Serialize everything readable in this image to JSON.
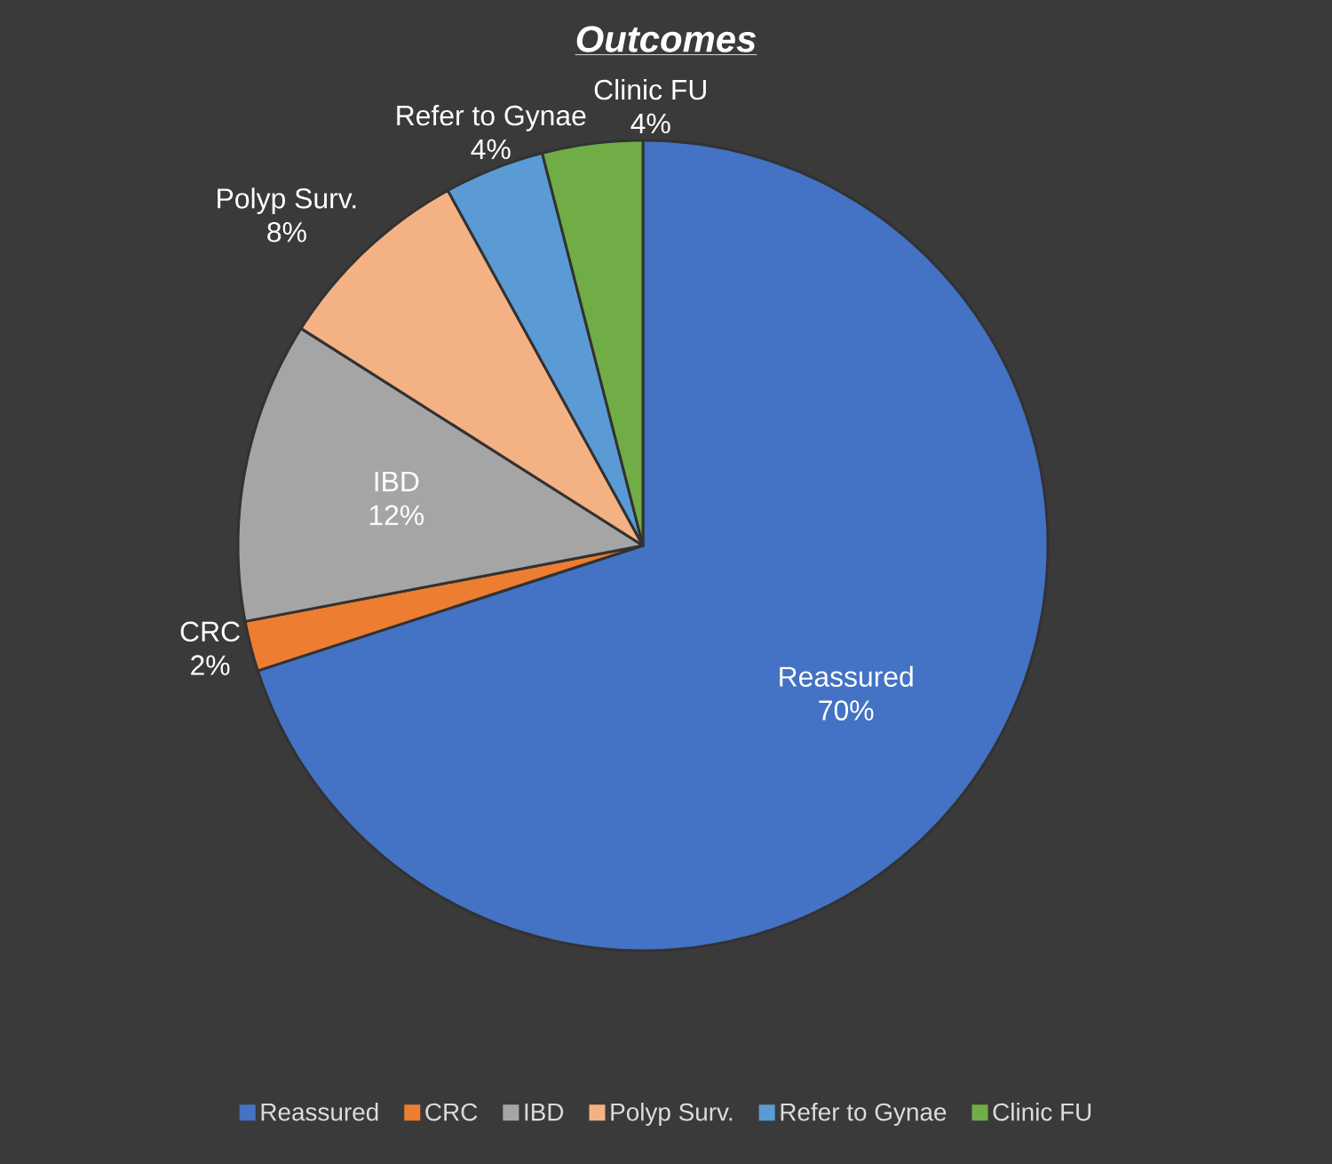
{
  "chart_data": {
    "type": "pie",
    "title": "Outcomes",
    "categories": [
      "Reassured",
      "CRC",
      "IBD",
      "Polyp Surv.",
      "Refer to Gynae",
      "Clinic FU"
    ],
    "values": [
      70,
      2,
      12,
      8,
      4,
      4
    ],
    "value_labels": [
      "70%",
      "2%",
      "12%",
      "8%",
      "4%",
      "4%"
    ],
    "colors": [
      "#4472c4",
      "#ed7d31",
      "#a5a5a5",
      "#f4b183",
      "#5b9bd5",
      "#70ad47"
    ],
    "legend": "bottom"
  }
}
